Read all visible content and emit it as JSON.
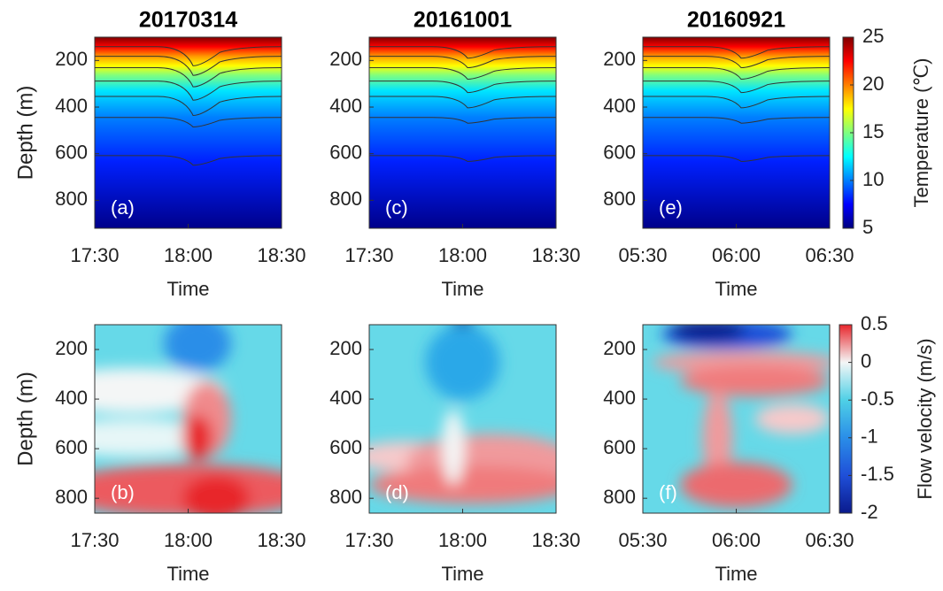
{
  "chart_data": [
    {
      "type": "heatmap",
      "title": "20170314",
      "annotation": "(a)",
      "categories": [
        "17:30",
        "18:00",
        "18:30"
      ],
      "xlabel": "Time",
      "ylabel": "Depth (m)",
      "ylim": [
        100,
        920
      ],
      "yticks": [
        200,
        400,
        600,
        800
      ]
    },
    {
      "type": "heatmap",
      "title": "20161001",
      "annotation": "(c)",
      "categories": [
        "17:30",
        "18:00",
        "18:30"
      ],
      "xlabel": "Time",
      "ylim": [
        100,
        920
      ],
      "yticks": [
        200,
        400,
        600,
        800
      ]
    },
    {
      "type": "heatmap",
      "title": "20160921",
      "annotation": "(e)",
      "categories": [
        "05:30",
        "06:00",
        "06:30"
      ],
      "xlabel": "Time",
      "ylim": [
        100,
        920
      ],
      "yticks": [
        200,
        400,
        600,
        800
      ]
    },
    {
      "type": "heatmap",
      "annotation": "(b)",
      "categories": [
        "17:30",
        "18:00",
        "18:30"
      ],
      "xlabel": "Time",
      "ylabel": "Depth (m)",
      "ylim": [
        100,
        860
      ],
      "yticks": [
        200,
        400,
        600,
        800
      ]
    },
    {
      "type": "heatmap",
      "annotation": "(d)",
      "categories": [
        "17:30",
        "18:00",
        "18:30"
      ],
      "xlabel": "Time",
      "ylim": [
        100,
        860
      ],
      "yticks": [
        200,
        400,
        600,
        800
      ]
    },
    {
      "type": "heatmap",
      "annotation": "(f)",
      "categories": [
        "05:30",
        "06:00",
        "06:30"
      ],
      "xlabel": "Time",
      "ylim": [
        100,
        860
      ],
      "yticks": [
        200,
        400,
        600,
        800
      ]
    },
    {
      "type": "colorbar",
      "label": "Temperature (℃)",
      "lim": [
        5,
        25
      ],
      "ticks": [
        5,
        10,
        15,
        20,
        25
      ],
      "colormap": [
        "#00007f",
        "#0000ff",
        "#007fff",
        "#00ffff",
        "#7fff7f",
        "#ffff00",
        "#ff7f00",
        "#ff0000",
        "#7f0000"
      ]
    },
    {
      "type": "colorbar",
      "label": "Flow velocity (m/s)",
      "lim": [
        -2,
        0.5
      ],
      "ticks": [
        -2,
        -1.5,
        -1,
        -0.5,
        0,
        0.5
      ],
      "colormap": [
        "#0a1a8c",
        "#1f4fd8",
        "#2a8ee8",
        "#4fd0e6",
        "#f4f6f6",
        "#e8262c"
      ]
    }
  ]
}
